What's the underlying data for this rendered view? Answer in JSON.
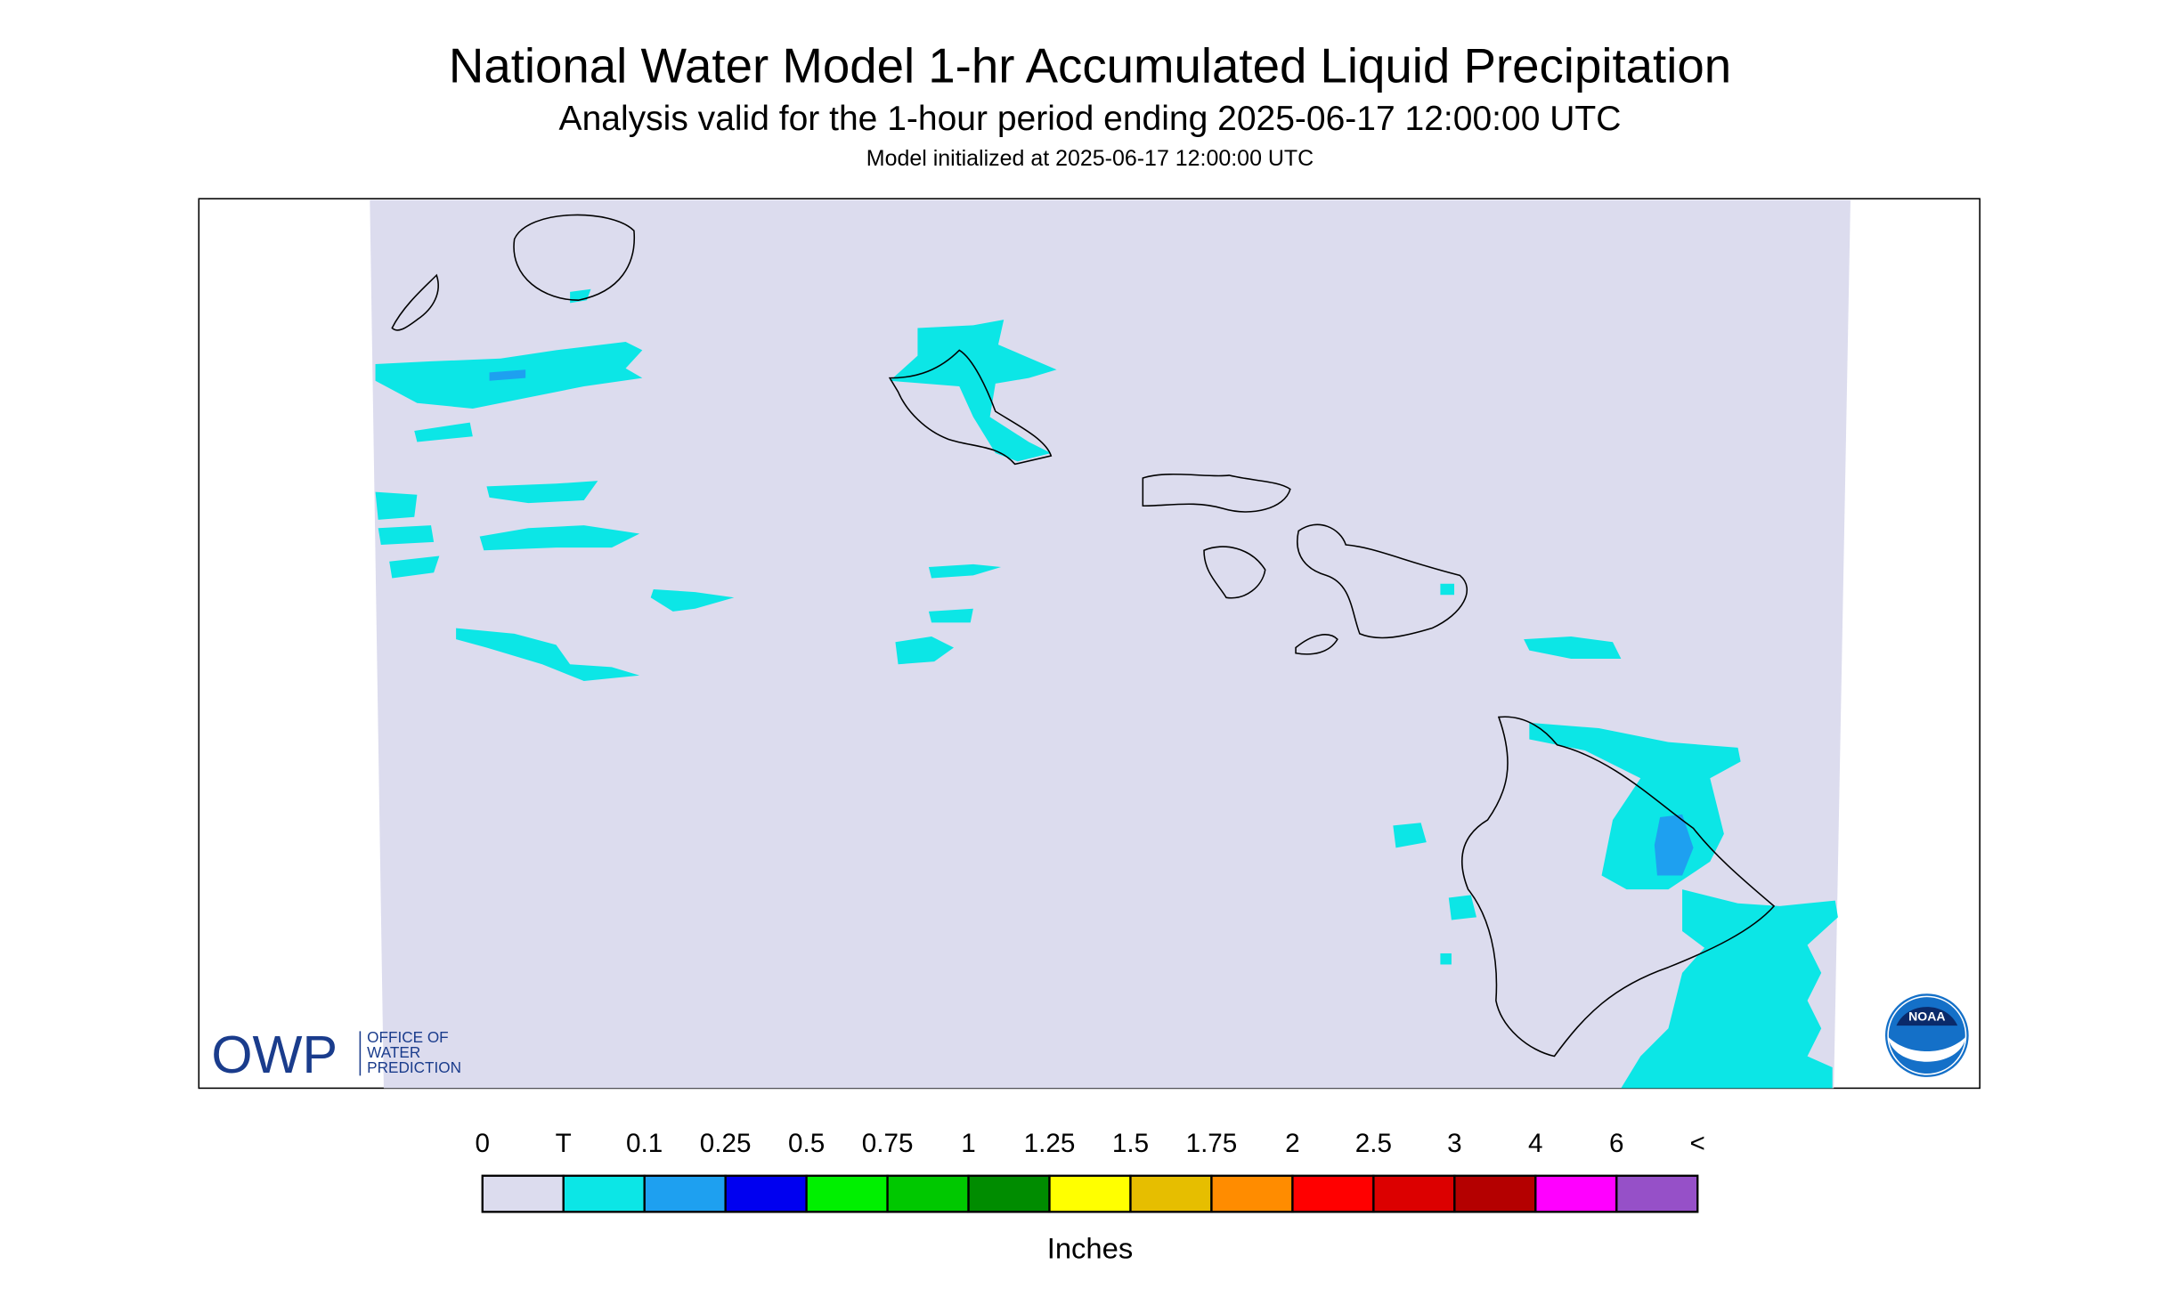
{
  "header": {
    "title": "National Water Model 1-hr Accumulated Liquid Precipitation",
    "subtitle": "Analysis valid for the 1-hour period ending 2025-06-17 12:00:00 UTC",
    "note": "Model initialized at 2025-06-17 12:00:00 UTC"
  },
  "logos": {
    "owp": "OWP",
    "owp_lines": [
      "OFFICE OF",
      "WATER",
      "PREDICTION"
    ],
    "noaa": "NOAA"
  },
  "legend": {
    "labels": [
      "0",
      "T",
      "0.1",
      "0.25",
      "0.5",
      "0.75",
      "1",
      "1.25",
      "1.5",
      "1.75",
      "2",
      "2.5",
      "3",
      "4",
      "6",
      "<"
    ],
    "colors": [
      "#dcdcee",
      "#0ce6e6",
      "#1ea0f0",
      "#0000f0",
      "#00f000",
      "#00c800",
      "#008c00",
      "#ffff00",
      "#e6be00",
      "#ff8c00",
      "#ff0000",
      "#dc0000",
      "#b40000",
      "#ff00ff",
      "#9650c8"
    ],
    "unit": "Inches"
  }
}
